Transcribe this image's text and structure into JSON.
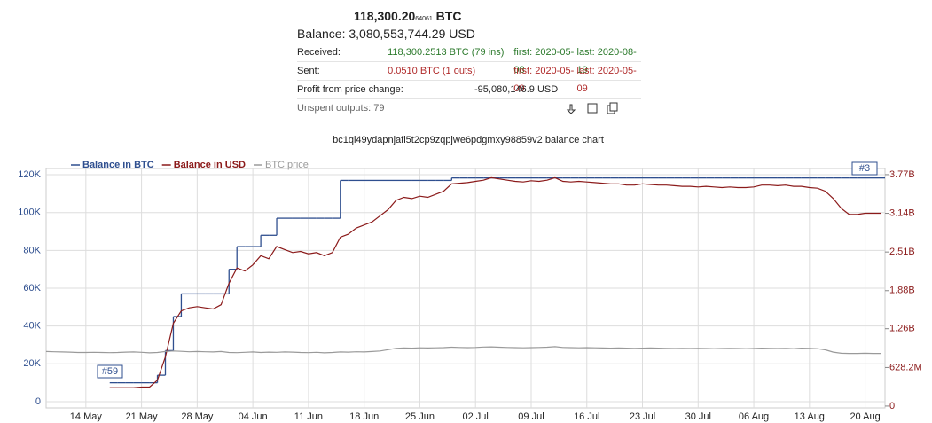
{
  "summary": {
    "amount": "118,300.20",
    "amount_small": "64061",
    "unit": "BTC",
    "balance": "Balance: 3,080,553,744.29 USD",
    "received": [
      "Received:",
      "118,300.2513 BTC (79 ins)",
      "first: 2020-05-08",
      "last: 2020-08-19"
    ],
    "sent": [
      "Sent:",
      "0.0510 BTC (1 outs)",
      "first: 2020-05-09",
      "last: 2020-05-09"
    ],
    "profit": [
      "Profit from price change:",
      "-95,080,146.9 USD"
    ],
    "unspent": "Unspent outputs: 79"
  },
  "chart_data": {
    "type": "line",
    "title": "bc1ql49ydapnjafl5t2cp9zqpjwe6pdgmxy98859v2 balance chart",
    "categories": [
      null,
      null,
      null,
      null,
      null,
      "14 May",
      null,
      null,
      null,
      null,
      null,
      null,
      "21 May",
      null,
      null,
      null,
      null,
      null,
      null,
      "28 May",
      null,
      null,
      null,
      null,
      null,
      null,
      "04 Jun",
      null,
      null,
      null,
      null,
      null,
      null,
      "11 Jun",
      null,
      null,
      null,
      null,
      null,
      null,
      "18 Jun",
      null,
      null,
      null,
      null,
      null,
      null,
      "25 Jun",
      null,
      null,
      null,
      null,
      null,
      null,
      "02 Jul",
      null,
      null,
      null,
      null,
      null,
      null,
      "09 Jul",
      null,
      null,
      null,
      null,
      null,
      null,
      "16 Jul",
      null,
      null,
      null,
      null,
      null,
      null,
      "23 Jul",
      null,
      null,
      null,
      null,
      null,
      null,
      "30 Jul",
      null,
      null,
      null,
      null,
      null,
      null,
      "06 Aug",
      null,
      null,
      null,
      null,
      null,
      null,
      "13 Aug",
      null,
      null,
      null,
      null,
      null,
      null,
      "20 Aug",
      null,
      null
    ],
    "series": [
      {
        "name": "Balance in BTC",
        "color": "#2f4f8f",
        "axis": "y",
        "step": true,
        "values": [
          null,
          null,
          null,
          null,
          null,
          null,
          null,
          null,
          10000,
          10000,
          10000,
          10000,
          10000,
          10000,
          14000,
          27000,
          45000,
          57000,
          57000,
          57000,
          57000,
          57000,
          57000,
          70000,
          82000,
          82000,
          82000,
          88000,
          88000,
          97000,
          97000,
          97000,
          97000,
          97000,
          97000,
          97000,
          97000,
          117000,
          117000,
          117000,
          117000,
          117000,
          117000,
          117000,
          117000,
          117000,
          117000,
          117000,
          117000,
          117000,
          117000,
          118300,
          118300,
          118300,
          118300,
          118300,
          118300,
          118300,
          118300,
          118300,
          118300,
          118300,
          118300,
          118300,
          118300,
          118300,
          118300,
          118300,
          118300,
          118300,
          118300,
          118300,
          118300,
          118300,
          118300,
          118300,
          118300,
          118300,
          118300,
          118300,
          118300,
          118300,
          118300,
          118300,
          118300,
          118300,
          118300,
          118300,
          118300,
          118300,
          118300,
          118300,
          118300,
          118300,
          118300,
          118300,
          118300,
          118300,
          118300,
          118300,
          118300,
          118300,
          118300,
          118300,
          118300,
          118300
        ]
      },
      {
        "name": "Balance in USD",
        "color": "#8b1a1a",
        "axis": "y2",
        "values": [
          null,
          null,
          null,
          null,
          null,
          null,
          null,
          null,
          300000000.0,
          300000000.0,
          300000000.0,
          300000000.0,
          310000000.0,
          310000000.0,
          420000000.0,
          800000000.0,
          1350000000.0,
          1550000000.0,
          1600000000.0,
          1620000000.0,
          1600000000.0,
          1580000000.0,
          1650000000.0,
          2000000000.0,
          2250000000.0,
          2200000000.0,
          2300000000.0,
          2450000000.0,
          2400000000.0,
          2600000000.0,
          2550000000.0,
          2500000000.0,
          2520000000.0,
          2480000000.0,
          2500000000.0,
          2450000000.0,
          2500000000.0,
          2750000000.0,
          2800000000.0,
          2900000000.0,
          2950000000.0,
          3000000000.0,
          3100000000.0,
          3200000000.0,
          3350000000.0,
          3400000000.0,
          3380000000.0,
          3420000000.0,
          3400000000.0,
          3450000000.0,
          3500000000.0,
          3620000000.0,
          3630000000.0,
          3640000000.0,
          3660000000.0,
          3680000000.0,
          3720000000.0,
          3700000000.0,
          3680000000.0,
          3660000000.0,
          3650000000.0,
          3670000000.0,
          3660000000.0,
          3680000000.0,
          3720000000.0,
          3660000000.0,
          3650000000.0,
          3660000000.0,
          3650000000.0,
          3640000000.0,
          3630000000.0,
          3620000000.0,
          3620000000.0,
          3600000000.0,
          3600000000.0,
          3620000000.0,
          3610000000.0,
          3600000000.0,
          3600000000.0,
          3590000000.0,
          3580000000.0,
          3580000000.0,
          3570000000.0,
          3580000000.0,
          3570000000.0,
          3560000000.0,
          3570000000.0,
          3560000000.0,
          3560000000.0,
          3570000000.0,
          3600000000.0,
          3600000000.0,
          3590000000.0,
          3600000000.0,
          3580000000.0,
          3580000000.0,
          3560000000.0,
          3550000000.0,
          3500000000.0,
          3380000000.0,
          3220000000.0,
          3120000000.0,
          3120000000.0,
          3140000000.0,
          3140000000.0,
          3140000000.0
        ]
      },
      {
        "name": "BTC price",
        "color": "#9a9a9a",
        "axis": "y",
        "values": [
          26500,
          26400,
          26300,
          26200,
          26000,
          26000,
          26100,
          26000,
          25900,
          26000,
          26200,
          26300,
          26100,
          25800,
          26000,
          26500,
          26800,
          26600,
          26400,
          26500,
          26400,
          26300,
          26500,
          26000,
          25900,
          26100,
          26300,
          26000,
          26200,
          26100,
          26300,
          26200,
          26000,
          25900,
          26100,
          25800,
          26000,
          26300,
          26200,
          26400,
          26300,
          26500,
          26800,
          27500,
          28200,
          28400,
          28300,
          28500,
          28400,
          28500,
          28600,
          28800,
          28700,
          28600,
          28700,
          28900,
          29000,
          28800,
          28700,
          28600,
          28500,
          28600,
          28700,
          28800,
          29100,
          28700,
          28600,
          28500,
          28600,
          28500,
          28400,
          28300,
          28400,
          28300,
          28200,
          28300,
          28400,
          28300,
          28200,
          28100,
          28200,
          28100,
          28200,
          28100,
          28000,
          28100,
          28200,
          28100,
          28000,
          28100,
          28300,
          28200,
          28100,
          28200,
          28000,
          28300,
          28200,
          28000,
          27400,
          26200,
          25600,
          25500,
          25500,
          25600,
          25500,
          25500
        ]
      }
    ],
    "ylim": [
      -3300,
      123300
    ],
    "yticks": [
      0,
      {
        "value": 20000,
        "label": "20K"
      },
      {
        "value": 40000,
        "label": "40K"
      },
      {
        "value": 60000,
        "label": "60K"
      },
      {
        "value": 80000,
        "label": "80K"
      },
      {
        "value": 100000,
        "label": "100K"
      },
      {
        "value": 120000,
        "label": "120K"
      }
    ],
    "y2lim": [
      -30000000,
      3870000000
    ],
    "y2ticks": [
      0,
      {
        "value": 628200000,
        "label": "628.2M"
      },
      {
        "value": 1260000000,
        "label": "1.26B"
      },
      {
        "value": 1880000000,
        "label": "1.88B"
      },
      {
        "value": 2510000000,
        "label": "2.51B"
      },
      {
        "value": 3140000000,
        "label": "3.14B"
      },
      {
        "value": 3770000000,
        "label": "3.77B"
      }
    ],
    "grid": true,
    "annotations": [
      "#59",
      "#3"
    ]
  }
}
